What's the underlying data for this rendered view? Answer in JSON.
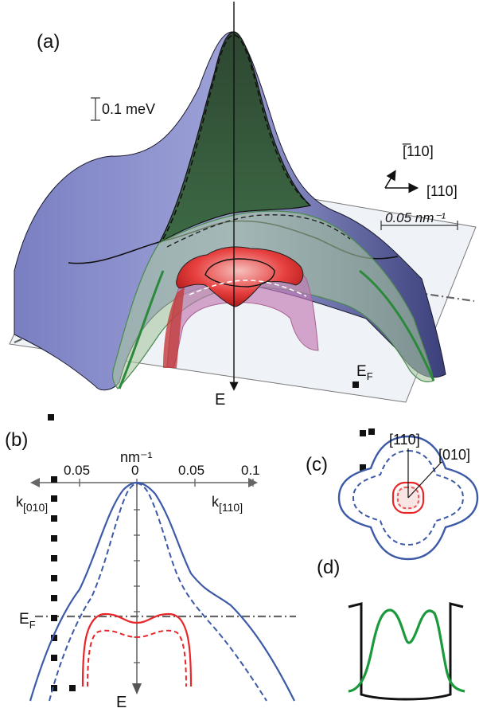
{
  "panels": {
    "a": "(a)",
    "b": "(b)",
    "c": "(c)",
    "d": "(d)"
  },
  "panel_a": {
    "energy_scale": "0.1 meV",
    "dir_1": "[̅110]",
    "dir_2": "[110]",
    "length_scale": "0.05 nm⁻¹",
    "fermi_label": "E",
    "fermi_sub": "F",
    "energy_axis": "E"
  },
  "panel_b": {
    "unit": "nm⁻¹",
    "ticks_left": [
      "0.05"
    ],
    "tick_zero": "0",
    "ticks_right": [
      "0.05",
      "0.1"
    ],
    "k_left": "k",
    "k_left_sub": "[010]",
    "k_right": "k",
    "k_right_sub": "[110]",
    "fermi_label": "E",
    "fermi_sub": "F",
    "energy_axis": "E"
  },
  "panel_c": {
    "dir_110": "[110]",
    "dir_010": "[010]"
  },
  "colors": {
    "blue": "#3d5aa8",
    "red": "#e8262a",
    "green": "#1a9a3c",
    "dark_green": "#2f4a32",
    "lavender": "#8a8fc8",
    "plane": "#e9ecf3"
  }
}
